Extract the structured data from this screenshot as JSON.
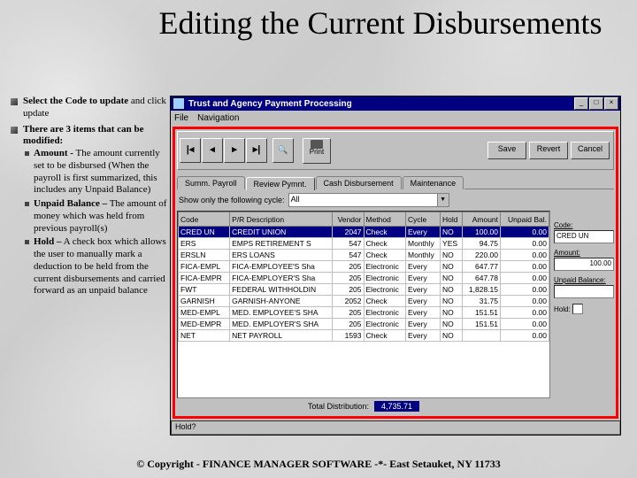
{
  "slide": {
    "title": "Editing the Current Disbursements",
    "bullets": [
      {
        "bold": "Select the Code to update",
        "rest": "and click update"
      },
      {
        "bold": "There are 3 items that can be modified:",
        "rest": "",
        "sub": [
          {
            "bold": "Amount -",
            "rest": "The amount currently set to be disbursed (When the payroll is first summarized, this includes any Unpaid Balance)"
          },
          {
            "bold": "Unpaid Balance –",
            "rest": "The amount of money which was held from previous payroll(s)"
          },
          {
            "bold": "Hold –",
            "rest": "A check box which allows the user to manually mark a deduction to be held from the current disbursements and carried forward as an unpaid balance"
          }
        ]
      }
    ],
    "copyright": "© Copyright - FINANCE MANAGER SOFTWARE -*- East Setauket, NY 11733"
  },
  "window": {
    "title": "Trust and Agency Payment Processing",
    "menus": [
      "File",
      "Navigation"
    ],
    "toolbar": {
      "print": "Print",
      "save": "Save",
      "revert": "Revert",
      "cancel": "Cancel"
    },
    "tabs": [
      "Summ. Payroll",
      "Review Pymnt.",
      "Cash Disbursement",
      "Maintenance"
    ],
    "filter": {
      "label": "Show only the following cycle:",
      "value": "All"
    },
    "status": "Hold?",
    "colors": {
      "highlight": "#ff0000",
      "titlebar": "#000080",
      "win_bg": "#c0c0c0",
      "sel_bg": "#000080",
      "sel_fg": "#ffffff"
    }
  },
  "grid": {
    "columns": [
      "Code",
      "P/R Description",
      "Vendor",
      "Method",
      "Cycle",
      "Hold",
      "Amount",
      "Unpaid Bal."
    ],
    "rows": [
      {
        "sel": true,
        "cells": [
          "CRED UN",
          "CREDIT UNION",
          "2047",
          "Check",
          "Every",
          "NO",
          "100.00",
          "0.00"
        ]
      },
      {
        "cells": [
          "ERS",
          "EMPS RETIREMENT S",
          "547",
          "Check",
          "Monthly",
          "YES",
          "94.75",
          "0.00"
        ]
      },
      {
        "cells": [
          "ERSLN",
          "ERS LOANS",
          "547",
          "Check",
          "Monthly",
          "NO",
          "220.00",
          "0.00"
        ]
      },
      {
        "cells": [
          "FICA-EMPL",
          "FICA-EMPLOYEE'S Sha",
          "205",
          "Electronic",
          "Every",
          "NO",
          "647.77",
          "0.00"
        ]
      },
      {
        "cells": [
          "FICA-EMPR",
          "FICA-EMPLOYER'S Sha",
          "205",
          "Electronic",
          "Every",
          "NO",
          "647.78",
          "0.00"
        ]
      },
      {
        "cells": [
          "FWT",
          "FEDERAL WITHHOLDIN",
          "205",
          "Electronic",
          "Every",
          "NO",
          "1,828.15",
          "0.00"
        ]
      },
      {
        "cells": [
          "GARNISH",
          "GARNISH-ANYONE",
          "2052",
          "Check",
          "Every",
          "NO",
          "31.75",
          "0.00"
        ]
      },
      {
        "cells": [
          "MED-EMPL",
          "MED. EMPLOYEE'S SHA",
          "205",
          "Electronic",
          "Every",
          "NO",
          "151.51",
          "0.00"
        ]
      },
      {
        "cells": [
          "MED-EMPR",
          "MED. EMPLOYER'S SHA",
          "205",
          "Electronic",
          "Every",
          "NO",
          "151.51",
          "0.00"
        ]
      },
      {
        "cells": [
          "NET",
          "NET PAYROLL",
          "1593",
          "Check",
          "Every",
          "NO",
          "",
          "0.00"
        ]
      }
    ],
    "total_label": "Total Distribution:",
    "total_value": "4,735.71"
  },
  "panel": {
    "code_label": "Code:",
    "code_value": "CRED UN",
    "amount_label": "Amount:",
    "amount_value": "100.00",
    "unpaid_label": "Unpaid Balance:",
    "unpaid_value": "",
    "hold_label": "Hold:"
  }
}
